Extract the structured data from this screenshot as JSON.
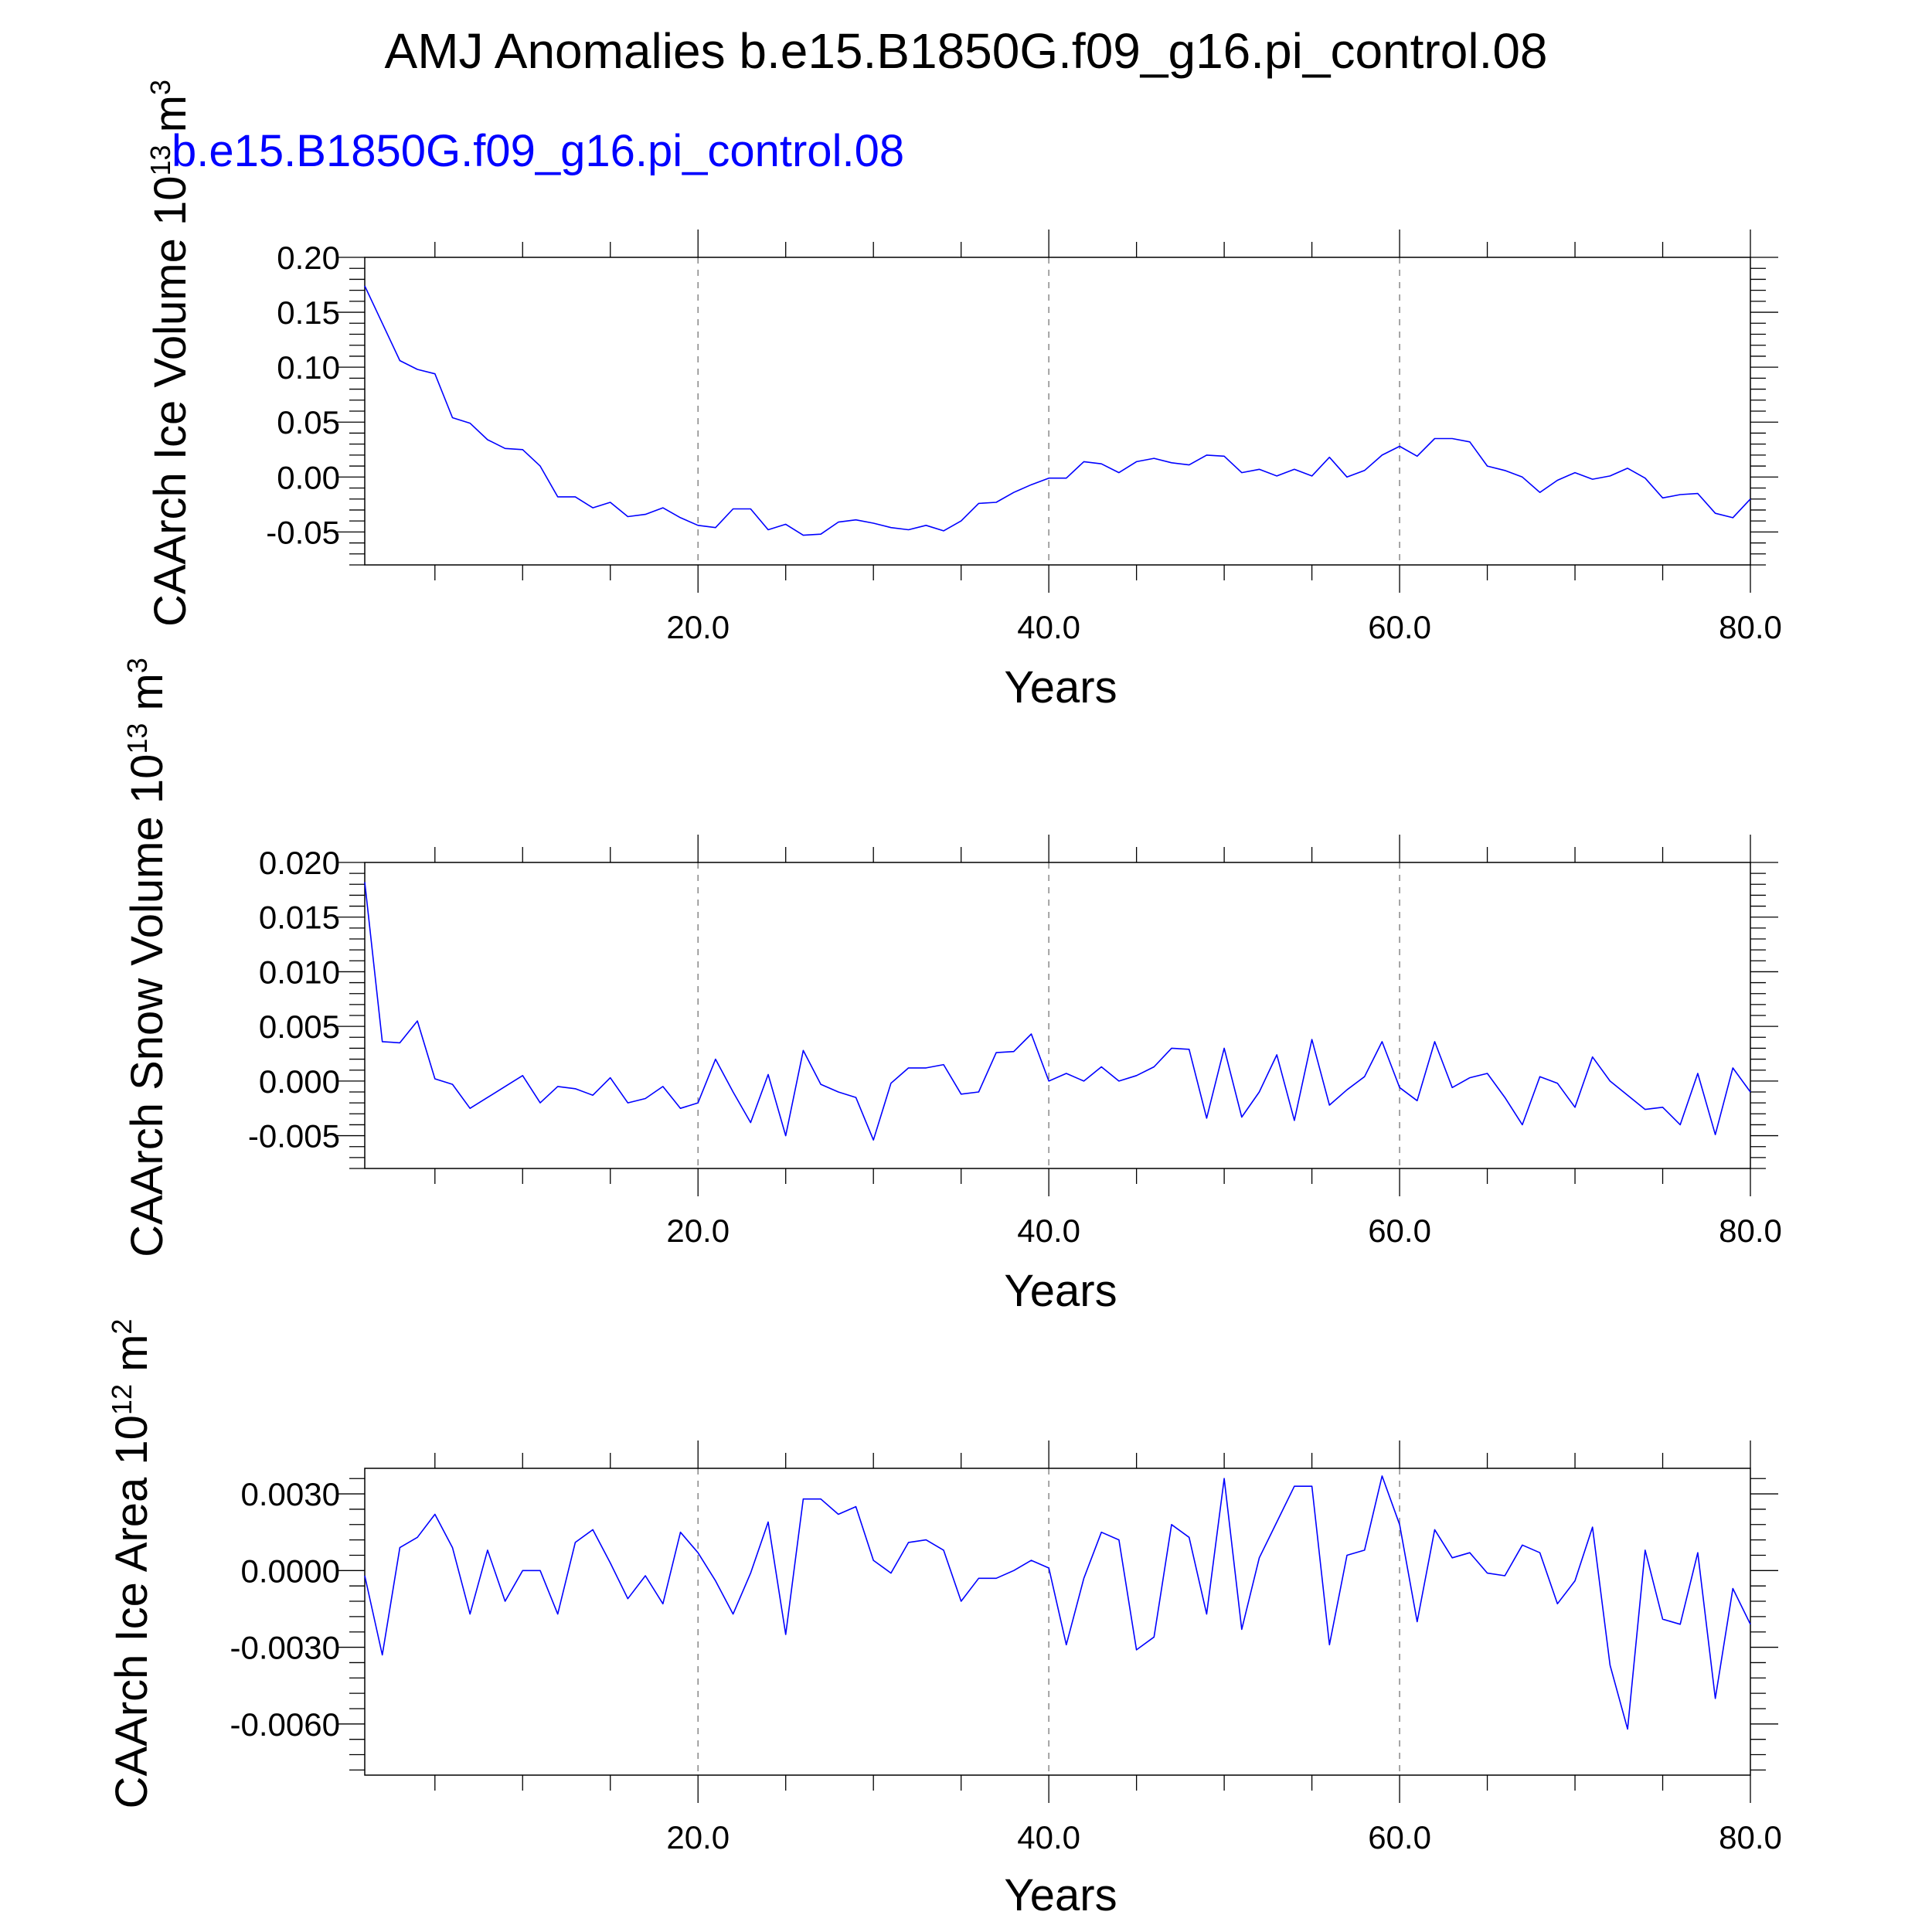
{
  "title": "AMJ Anomalies b.e15.B1850G.f09_g16.pi_control.08",
  "subtitle": "b.e15.B1850G.f09_g16.pi_control.08",
  "series_color": "#0000ff",
  "chart_data": [
    {
      "type": "line",
      "title": "",
      "xlabel": "Years",
      "ylabel": "CAArch Ice Volume 10",
      "ylabel_exp": "13",
      "ylabel_unit": "m",
      "ylabel_unit_exp": "3",
      "xlim": [
        1,
        80
      ],
      "ylim": [
        -0.08,
        0.2
      ],
      "xticks": [
        20,
        40,
        60,
        80
      ],
      "xtick_labels": [
        "20.0",
        "40.0",
        "60.0",
        "80.0"
      ],
      "yticks": [
        0.2,
        0.15,
        0.1,
        0.05,
        0.0,
        -0.05
      ],
      "ytick_labels": [
        "0.20",
        "0.15",
        "0.10",
        "0.05",
        "0.00",
        "-0.05"
      ],
      "grid": "vertical dashed at major x ticks",
      "x": [
        1,
        2,
        3,
        4,
        5,
        6,
        7,
        8,
        9,
        10,
        11,
        12,
        13,
        14,
        15,
        16,
        17,
        18,
        19,
        20,
        21,
        22,
        23,
        24,
        25,
        26,
        27,
        28,
        29,
        30,
        31,
        32,
        33,
        34,
        35,
        36,
        37,
        38,
        39,
        40,
        41,
        42,
        43,
        44,
        45,
        46,
        47,
        48,
        49,
        50,
        51,
        52,
        53,
        54,
        55,
        56,
        57,
        58,
        59,
        60,
        61,
        62,
        63,
        64,
        65,
        66,
        67,
        68,
        69,
        70,
        71,
        72,
        73,
        74,
        75,
        76,
        77,
        78,
        79,
        80
      ],
      "series": [
        {
          "values": [
            0.174,
            0.14,
            0.106,
            0.098,
            0.094,
            0.054,
            0.049,
            0.034,
            0.026,
            0.025,
            0.01,
            -0.018,
            -0.018,
            -0.028,
            -0.023,
            -0.036,
            -0.034,
            -0.028,
            -0.037,
            -0.044,
            -0.046,
            -0.029,
            -0.029,
            -0.048,
            -0.043,
            -0.053,
            -0.052,
            -0.041,
            -0.039,
            -0.042,
            -0.046,
            -0.048,
            -0.044,
            -0.049,
            -0.04,
            -0.024,
            -0.023,
            -0.014,
            -0.007,
            -0.001,
            -0.001,
            0.014,
            0.012,
            0.004,
            0.014,
            0.017,
            0.013,
            0.011,
            0.02,
            0.019,
            0.004,
            0.007,
            0.001,
            0.007,
            0.001,
            0.018,
            0.0,
            0.006,
            0.02,
            0.028,
            0.019,
            0.035,
            0.035,
            0.032,
            0.01,
            0.006,
            0.0,
            -0.014,
            -0.003,
            0.004,
            -0.002,
            0.001,
            0.008,
            -0.001,
            -0.019,
            -0.016,
            -0.015,
            -0.033,
            -0.037,
            -0.02
          ]
        }
      ]
    },
    {
      "type": "line",
      "title": "",
      "xlabel": "Years",
      "ylabel": "CAArch Snow Volume 10",
      "ylabel_exp": "13",
      "ylabel_unit": "m",
      "ylabel_unit_exp": "3",
      "xlim": [
        1,
        80
      ],
      "ylim": [
        -0.008,
        0.02
      ],
      "xticks": [
        20,
        40,
        60,
        80
      ],
      "xtick_labels": [
        "20.0",
        "40.0",
        "60.0",
        "80.0"
      ],
      "yticks": [
        0.02,
        0.015,
        0.01,
        0.005,
        0.0,
        -0.005
      ],
      "ytick_labels": [
        "0.020",
        "0.015",
        "0.010",
        "0.005",
        "0.000",
        "-0.005"
      ],
      "grid": "vertical dashed at major x ticks",
      "x": [
        1,
        2,
        3,
        4,
        5,
        6,
        7,
        8,
        9,
        10,
        11,
        12,
        13,
        14,
        15,
        16,
        17,
        18,
        19,
        20,
        21,
        22,
        23,
        24,
        25,
        26,
        27,
        28,
        29,
        30,
        31,
        32,
        33,
        34,
        35,
        36,
        37,
        38,
        39,
        40,
        41,
        42,
        43,
        44,
        45,
        46,
        47,
        48,
        49,
        50,
        51,
        52,
        53,
        54,
        55,
        56,
        57,
        58,
        59,
        60,
        61,
        62,
        63,
        64,
        65,
        66,
        67,
        68,
        69,
        70,
        71,
        72,
        73,
        74,
        75,
        76,
        77,
        78,
        79,
        80
      ],
      "series": [
        {
          "values": [
            0.0182,
            0.0036,
            0.0035,
            0.0055,
            0.0002,
            -0.0003,
            -0.0025,
            -0.0015,
            -0.0005,
            0.0005,
            -0.002,
            -0.0005,
            -0.0007,
            -0.0013,
            0.0003,
            -0.002,
            -0.0016,
            -0.0005,
            -0.0025,
            -0.002,
            0.002,
            -0.001,
            -0.0038,
            0.0006,
            -0.005,
            0.0028,
            -0.0003,
            -0.001,
            -0.0015,
            -0.0054,
            -0.0002,
            0.0012,
            0.0012,
            0.0015,
            -0.0012,
            -0.001,
            0.0026,
            0.0027,
            0.0043,
            0.0,
            0.0007,
            0.0,
            0.0013,
            0.0,
            0.0005,
            0.0013,
            0.003,
            0.0029,
            -0.0034,
            0.003,
            -0.0033,
            -0.001,
            0.0024,
            -0.0036,
            0.0038,
            -0.0022,
            -0.0008,
            0.0004,
            0.0036,
            -0.0006,
            -0.0018,
            0.0036,
            -0.0006,
            0.0003,
            0.0007,
            -0.0015,
            -0.004,
            0.0004,
            -0.0002,
            -0.0024,
            0.0022,
            0.0,
            -0.0013,
            -0.0026,
            -0.0024,
            -0.004,
            0.0007,
            -0.0049,
            0.0012,
            -0.001
          ]
        }
      ]
    },
    {
      "type": "line",
      "title": "",
      "xlabel": "Years",
      "ylabel": "CAArch Ice Area 10",
      "ylabel_exp": "12",
      "ylabel_unit": "m",
      "ylabel_unit_exp": "2",
      "xlim": [
        1,
        80
      ],
      "ylim": [
        -0.008,
        0.004
      ],
      "xticks": [
        20,
        40,
        60,
        80
      ],
      "xtick_labels": [
        "20.0",
        "40.0",
        "60.0",
        "80.0"
      ],
      "yticks": [
        0.003,
        0.0,
        -0.003,
        -0.006
      ],
      "ytick_labels": [
        "0.0030",
        "0.0000",
        "-0.0030",
        "-0.0060"
      ],
      "grid": "vertical dashed at major x ticks",
      "x": [
        1,
        2,
        3,
        4,
        5,
        6,
        7,
        8,
        9,
        10,
        11,
        12,
        13,
        14,
        15,
        16,
        17,
        18,
        19,
        20,
        21,
        22,
        23,
        24,
        25,
        26,
        27,
        28,
        29,
        30,
        31,
        32,
        33,
        34,
        35,
        36,
        37,
        38,
        39,
        40,
        41,
        42,
        43,
        44,
        45,
        46,
        47,
        48,
        49,
        50,
        51,
        52,
        53,
        54,
        55,
        56,
        57,
        58,
        59,
        60,
        61,
        62,
        63,
        64,
        65,
        66,
        67,
        68,
        69,
        70,
        71,
        72,
        73,
        74,
        75,
        76,
        77,
        78,
        79,
        80
      ],
      "series": [
        {
          "values": [
            -0.0002,
            -0.0033,
            0.0009,
            0.0013,
            0.0022,
            0.0009,
            -0.0017,
            0.0008,
            -0.0012,
            0.0,
            0.0,
            -0.0017,
            0.0011,
            0.0016,
            0.0003,
            -0.0011,
            -0.0002,
            -0.0013,
            0.0015,
            0.0007,
            -0.0004,
            -0.0017,
            -0.0001,
            0.0019,
            -0.0025,
            0.0028,
            0.0028,
            0.0022,
            0.0025,
            0.0004,
            -0.0001,
            0.0011,
            0.0012,
            0.0008,
            -0.0012,
            -0.0003,
            -0.0003,
            0.0,
            0.0004,
            0.0001,
            -0.0029,
            -0.0003,
            0.0015,
            0.0012,
            -0.0031,
            -0.0026,
            0.0018,
            0.0013,
            -0.0017,
            0.0036,
            -0.0023,
            0.0005,
            0.0019,
            0.0033,
            0.0033,
            -0.0029,
            0.0006,
            0.0008,
            0.0037,
            0.0018,
            -0.002,
            0.0016,
            0.0005,
            0.0007,
            -0.0001,
            -0.0002,
            0.001,
            0.0007,
            -0.0013,
            -0.0004,
            0.0017,
            -0.0037,
            -0.0062,
            0.0008,
            -0.0019,
            -0.0021,
            0.0007,
            -0.005,
            -0.0007,
            -0.0021
          ]
        }
      ]
    }
  ]
}
